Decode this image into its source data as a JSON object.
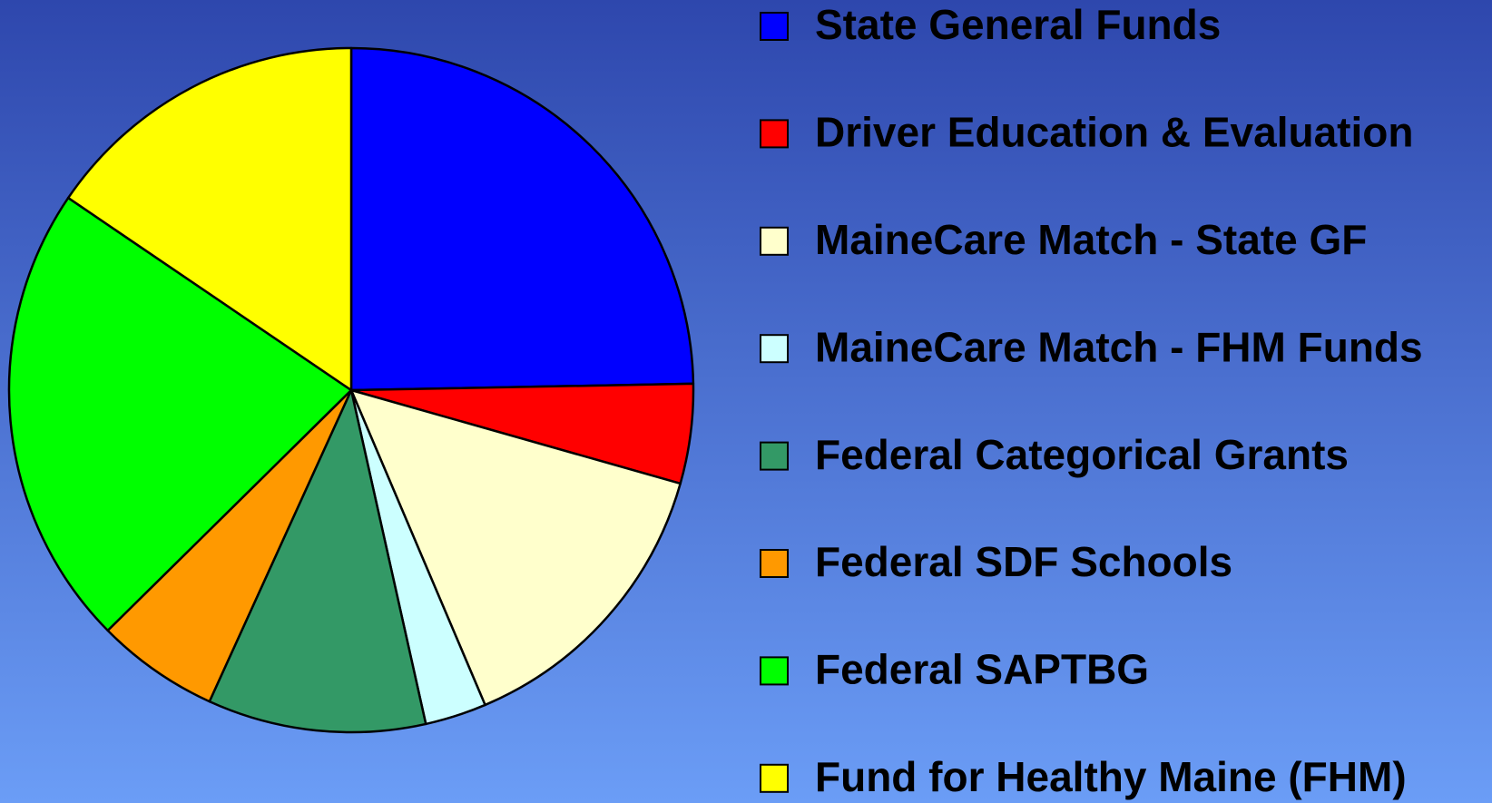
{
  "chart_data": {
    "type": "pie",
    "categories": [
      "State General Funds",
      "Driver Education & Evaluation",
      "MaineCare Match - State GF",
      "MaineCare Match - FHM Funds",
      "Federal Categorical Grants",
      "Federal SDF Schools",
      "Federal SAPTBG",
      "Fund for Healthy Maine (FHM)"
    ],
    "values": [
      24.7,
      4.7,
      14.2,
      2.9,
      10.3,
      5.8,
      21.9,
      15.5
    ],
    "colors": [
      "#0000ff",
      "#ff0000",
      "#ffffcc",
      "#ccffff",
      "#339966",
      "#ff9900",
      "#00ff00",
      "#ffff00"
    ],
    "legend": "right"
  }
}
